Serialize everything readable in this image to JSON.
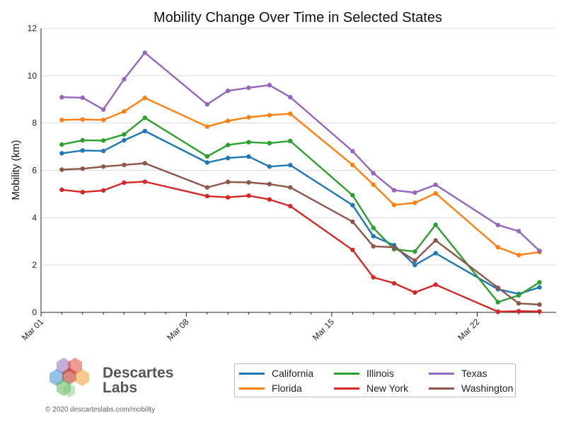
{
  "chart_data": {
    "type": "line",
    "title": "Mobility Change Over Time in Selected States",
    "xlabel": "",
    "ylabel": "Mobility (km)",
    "ylim": [
      0,
      12
    ],
    "yticks": [
      "0",
      "2",
      "4",
      "6",
      "8",
      "10",
      "12"
    ],
    "xlim": [
      0,
      24.8
    ],
    "xticks": [
      {
        "day": 0,
        "label": "Mar 01"
      },
      {
        "day": 7,
        "label": "Mar 08"
      },
      {
        "day": 14,
        "label": "Mar 15"
      },
      {
        "day": 21,
        "label": "Mar 22"
      }
    ],
    "x": [
      1,
      2,
      3,
      4,
      5,
      8,
      9,
      10,
      11,
      12,
      15,
      16,
      17,
      18,
      19,
      22,
      23,
      24
    ],
    "grid": "horizontal",
    "legend_position": "bottom-right",
    "series": [
      {
        "name": "California",
        "color": "#1f77b4",
        "values": [
          6.72,
          6.84,
          6.82,
          7.27,
          7.66,
          6.33,
          6.52,
          6.58,
          6.16,
          6.22,
          4.53,
          3.22,
          2.84,
          2.0,
          2.5,
          0.98,
          0.78,
          1.06
        ]
      },
      {
        "name": "Florida",
        "color": "#ff7f0e",
        "values": [
          8.13,
          8.15,
          8.13,
          8.49,
          9.06,
          7.85,
          8.09,
          8.24,
          8.33,
          8.39,
          6.23,
          5.4,
          4.54,
          4.63,
          5.03,
          2.75,
          2.42,
          2.55
        ]
      },
      {
        "name": "Illinois",
        "color": "#2ca02c",
        "values": [
          7.09,
          7.27,
          7.26,
          7.52,
          8.22,
          6.59,
          7.07,
          7.19,
          7.15,
          7.24,
          4.95,
          3.57,
          2.67,
          2.57,
          3.7,
          0.43,
          0.72,
          1.27
        ]
      },
      {
        "name": "New York",
        "color": "#d62728",
        "values": [
          5.18,
          5.08,
          5.15,
          5.48,
          5.52,
          4.91,
          4.86,
          4.93,
          4.77,
          4.49,
          2.64,
          1.48,
          1.23,
          0.84,
          1.17,
          0.03,
          0.05,
          0.04
        ]
      },
      {
        "name": "Texas",
        "color": "#9467bd",
        "values": [
          9.09,
          9.07,
          8.57,
          9.85,
          10.97,
          8.79,
          9.36,
          9.49,
          9.6,
          9.09,
          6.81,
          5.88,
          5.16,
          5.06,
          5.39,
          3.69,
          3.43,
          2.6
        ]
      },
      {
        "name": "Washington",
        "color": "#8c564b",
        "values": [
          6.03,
          6.07,
          6.16,
          6.23,
          6.3,
          5.28,
          5.51,
          5.49,
          5.42,
          5.28,
          3.83,
          2.79,
          2.75,
          2.19,
          3.04,
          1.04,
          0.38,
          0.33
        ]
      }
    ]
  },
  "brand": {
    "name_line1": "Descartes",
    "name_line2": "Labs",
    "copyright": "© 2020  descarteslabs.com/mobility"
  }
}
